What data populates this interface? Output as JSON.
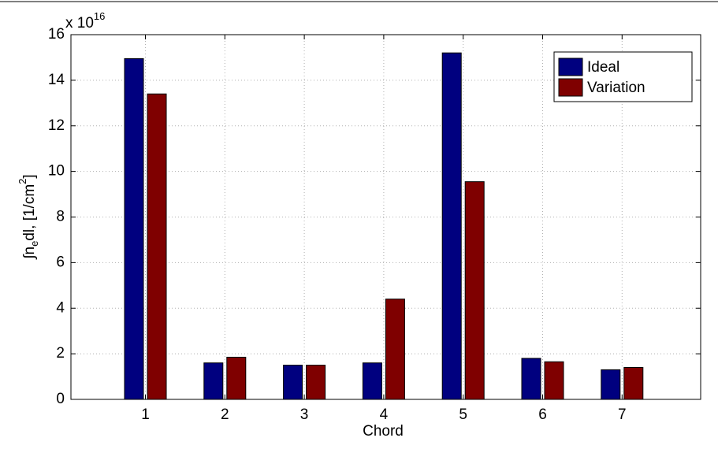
{
  "chart_data": {
    "type": "bar",
    "axis_multiplier": {
      "base": "x 10",
      "exponent": "16"
    },
    "xlabel": "Chord",
    "ylabel": [
      {
        "text": "∫n"
      },
      {
        "text": "e",
        "shift": "sub"
      },
      {
        "text": "dl, [1/cm"
      },
      {
        "text": "2",
        "shift": "super"
      },
      {
        "text": "]"
      }
    ],
    "categories": [
      "1",
      "2",
      "3",
      "4",
      "5",
      "6",
      "7"
    ],
    "series": [
      {
        "name": "Ideal",
        "color": "#00007f",
        "values": [
          14.95,
          1.6,
          1.5,
          1.6,
          15.2,
          1.8,
          1.3
        ]
      },
      {
        "name": "Variation",
        "color": "#7f0000",
        "values": [
          13.4,
          1.85,
          1.5,
          4.4,
          9.55,
          1.65,
          1.4
        ]
      }
    ],
    "ylim": [
      0,
      16
    ],
    "yticks": [
      0,
      2,
      4,
      6,
      8,
      10,
      12,
      14,
      16
    ],
    "grid": true,
    "legend": "top-right"
  }
}
